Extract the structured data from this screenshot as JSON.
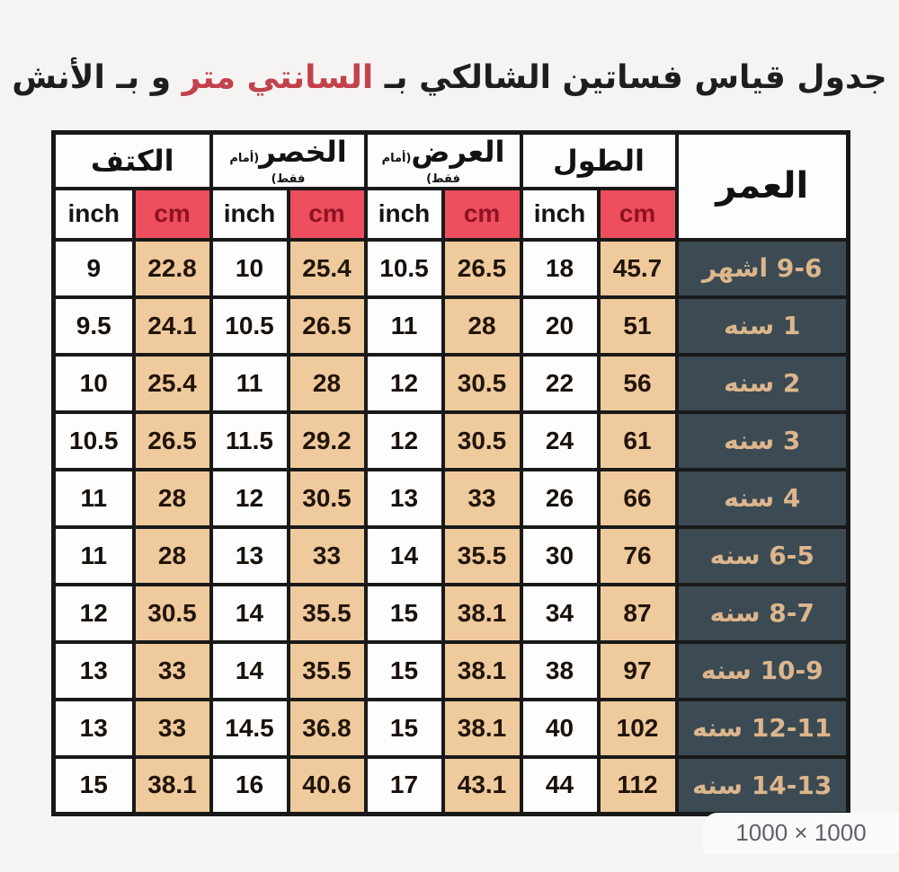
{
  "title": {
    "part1": "جدول قياس فساتين الشالكي بـ ",
    "highlight": "السانتي متر",
    "part2": " و بـ الأنش"
  },
  "size_badge": "1000 × 1000",
  "colors": {
    "title_highlight": "#c2424c",
    "cm_header_bg": "#ee4f5e",
    "cm_header_text": "#8f1224",
    "cm_cell_bg": "#eeca9d",
    "age_column_bg": "#3c4a53",
    "age_column_text": "#dcb68c",
    "border": "#191919",
    "page_bg": "#f6f4f3"
  },
  "chart_data": {
    "type": "table",
    "title": "جدول قياس فساتين الشالكي بـ السانتي متر و بـ الأنش",
    "column_groups": [
      {
        "id": "shoulder",
        "label": "الكتف",
        "note": "",
        "units": [
          "inch",
          "cm"
        ]
      },
      {
        "id": "waist",
        "label": "الخصر",
        "note": "(أمام فقط)",
        "units": [
          "inch",
          "cm"
        ]
      },
      {
        "id": "width",
        "label": "العرض",
        "note": "(أمام فقط)",
        "units": [
          "inch",
          "cm"
        ]
      },
      {
        "id": "length",
        "label": "الطول",
        "note": "",
        "units": [
          "inch",
          "cm"
        ]
      },
      {
        "id": "age",
        "label": "العمر"
      }
    ],
    "rows": [
      {
        "shoulder_inch": "9",
        "shoulder_cm": "22.8",
        "waist_inch": "10",
        "waist_cm": "25.4",
        "width_inch": "10.5",
        "width_cm": "26.5",
        "length_inch": "18",
        "length_cm": "45.7",
        "age": "9-6 اشهر"
      },
      {
        "shoulder_inch": "9.5",
        "shoulder_cm": "24.1",
        "waist_inch": "10.5",
        "waist_cm": "26.5",
        "width_inch": "11",
        "width_cm": "28",
        "length_inch": "20",
        "length_cm": "51",
        "age": "1 سنه"
      },
      {
        "shoulder_inch": "10",
        "shoulder_cm": "25.4",
        "waist_inch": "11",
        "waist_cm": "28",
        "width_inch": "12",
        "width_cm": "30.5",
        "length_inch": "22",
        "length_cm": "56",
        "age": "2 سنه"
      },
      {
        "shoulder_inch": "10.5",
        "shoulder_cm": "26.5",
        "waist_inch": "11.5",
        "waist_cm": "29.2",
        "width_inch": "12",
        "width_cm": "30.5",
        "length_inch": "24",
        "length_cm": "61",
        "age": "3 سنه"
      },
      {
        "shoulder_inch": "11",
        "shoulder_cm": "28",
        "waist_inch": "12",
        "waist_cm": "30.5",
        "width_inch": "13",
        "width_cm": "33",
        "length_inch": "26",
        "length_cm": "66",
        "age": "4 سنه"
      },
      {
        "shoulder_inch": "11",
        "shoulder_cm": "28",
        "waist_inch": "13",
        "waist_cm": "33",
        "width_inch": "14",
        "width_cm": "35.5",
        "length_inch": "30",
        "length_cm": "76",
        "age": "6-5 سنه"
      },
      {
        "shoulder_inch": "12",
        "shoulder_cm": "30.5",
        "waist_inch": "14",
        "waist_cm": "35.5",
        "width_inch": "15",
        "width_cm": "38.1",
        "length_inch": "34",
        "length_cm": "87",
        "age": "8-7 سنه"
      },
      {
        "shoulder_inch": "13",
        "shoulder_cm": "33",
        "waist_inch": "14",
        "waist_cm": "35.5",
        "width_inch": "15",
        "width_cm": "38.1",
        "length_inch": "38",
        "length_cm": "97",
        "age": "10-9 سنه"
      },
      {
        "shoulder_inch": "13",
        "shoulder_cm": "33",
        "waist_inch": "14.5",
        "waist_cm": "36.8",
        "width_inch": "15",
        "width_cm": "38.1",
        "length_inch": "40",
        "length_cm": "102",
        "age": "12-11 سنه"
      },
      {
        "shoulder_inch": "15",
        "shoulder_cm": "38.1",
        "waist_inch": "16",
        "waist_cm": "40.6",
        "width_inch": "17",
        "width_cm": "43.1",
        "length_inch": "44",
        "length_cm": "112",
        "age": "14-13 سنه"
      }
    ]
  }
}
